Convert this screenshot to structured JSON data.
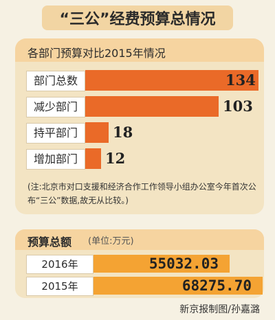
{
  "title": "“三公”经费预算总情况",
  "chart_data": [
    {
      "type": "bar",
      "title": "各部门预算对比2015年情况",
      "categories": [
        "部门总数",
        "减少部门",
        "持平部门",
        "增加部门"
      ],
      "values": [
        134,
        103,
        18,
        12
      ],
      "value_labels": [
        "134",
        "103",
        "18",
        "12"
      ],
      "color": "#ea6a28"
    },
    {
      "type": "bar",
      "title": "预算总额",
      "unit": "(单位:万元)",
      "categories": [
        "2016年",
        "2015年"
      ],
      "values": [
        55032.03,
        68275.7
      ],
      "value_labels": [
        "55032.03",
        "68275.70"
      ],
      "color": "#f4a333"
    }
  ],
  "note": "(注:北京市对口支援和经济合作工作领导小组办公室今年首次公布“三公”数据,故无从比较。)",
  "credit": "新京报制图/孙嘉潞"
}
